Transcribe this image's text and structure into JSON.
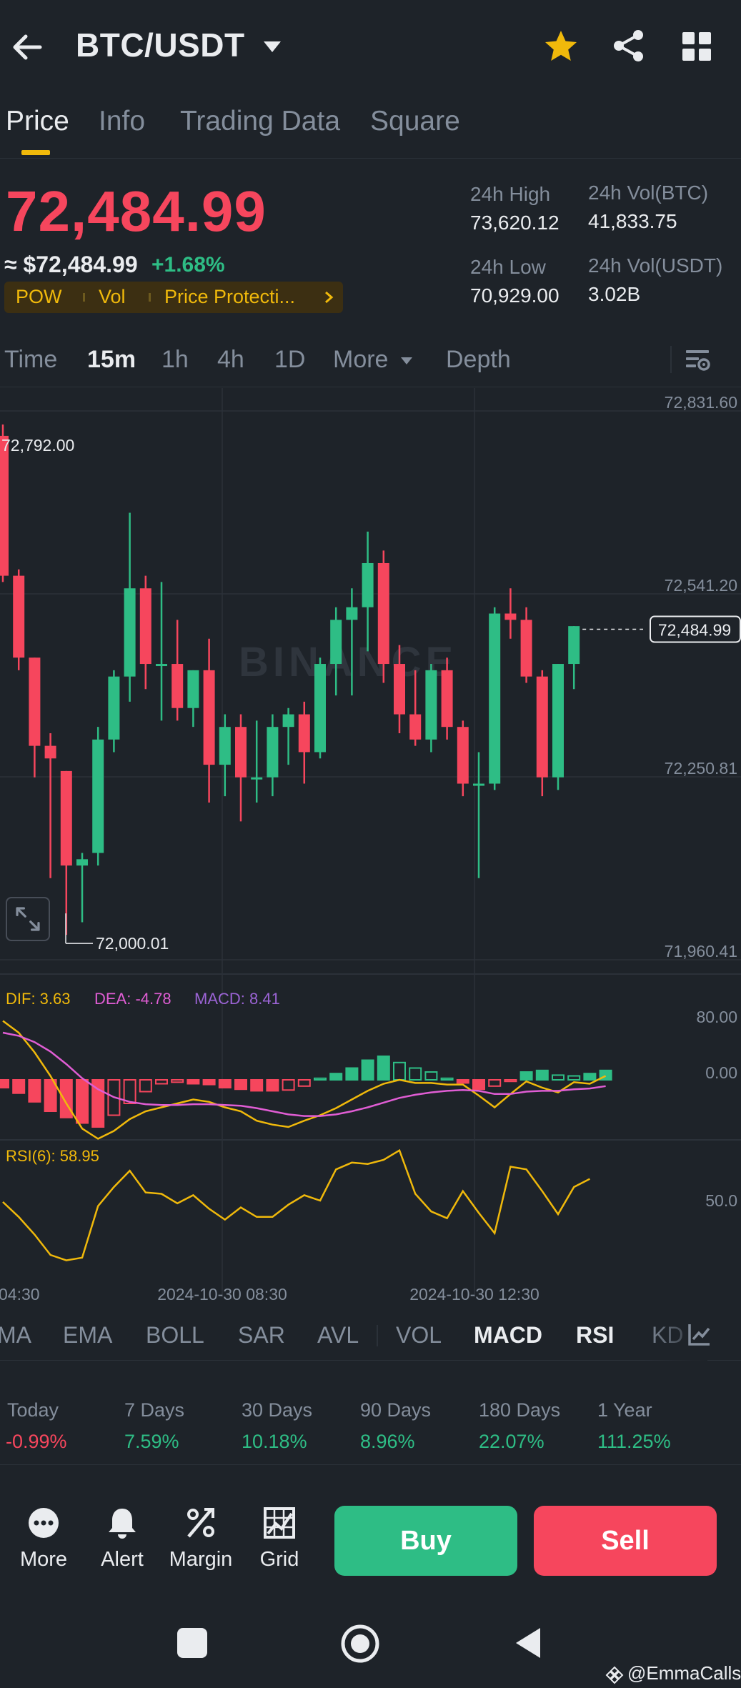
{
  "header": {
    "pair": "BTC/USDT",
    "icons": {
      "back": "back-arrow-icon",
      "caret": "caret-down-icon",
      "favorite": "star-icon",
      "share": "share-icon",
      "menu": "grid-icon"
    },
    "colors": {
      "favorite": "#f0b90b"
    }
  },
  "tabs": [
    {
      "label": "Price",
      "active": true
    },
    {
      "label": "Info",
      "active": false
    },
    {
      "label": "Trading Data",
      "active": false
    },
    {
      "label": "Square",
      "active": false
    }
  ],
  "price": {
    "last": "72,484.99",
    "approx": "≈ $72,484.99",
    "change": "+1.68%",
    "tags": [
      "POW",
      "Vol",
      "Price Protecti..."
    ],
    "stats": {
      "high_label": "24h High",
      "high": "73,620.12",
      "low_label": "24h Low",
      "low": "70,929.00",
      "vol_btc_label": "24h Vol(BTC)",
      "vol_btc": "41,833.75",
      "vol_usdt_label": "24h Vol(USDT)",
      "vol_usdt": "3.02B"
    },
    "colors": {
      "down": "#f6465d",
      "up": "#2ebd85",
      "accent": "#f0b90b"
    }
  },
  "intervals": {
    "items": [
      {
        "label": "Time",
        "active": false
      },
      {
        "label": "15m",
        "active": true
      },
      {
        "label": "1h",
        "active": false
      },
      {
        "label": "4h",
        "active": false
      },
      {
        "label": "1D",
        "active": false
      },
      {
        "label": "More",
        "active": false
      },
      {
        "label": "Depth",
        "active": false
      }
    ],
    "settings_icon": "chart-settings-icon"
  },
  "chart_data": [
    {
      "type": "candlestick",
      "watermark": "BINANCE",
      "y_ticks": [
        "72,831.60",
        "72,541.20",
        "72,250.81",
        "71,960.41"
      ],
      "ylim": [
        71960.41,
        72831.6
      ],
      "x_ticks": [
        "04:30",
        "2024-10-30 08:30",
        "2024-10-30 12:30"
      ],
      "max_label": "72,792.00",
      "min_label": "72,000.01",
      "last_price_label": "72,484.99",
      "candles": [
        {
          "o": 72792,
          "h": 72810,
          "l": 72560,
          "c": 72570
        },
        {
          "o": 72570,
          "h": 72580,
          "l": 72420,
          "c": 72440
        },
        {
          "o": 72440,
          "h": 72440,
          "l": 72250,
          "c": 72300
        },
        {
          "o": 72300,
          "h": 72320,
          "l": 72090,
          "c": 72280
        },
        {
          "o": 72260,
          "h": 72260,
          "l": 72000,
          "c": 72110
        },
        {
          "o": 72110,
          "h": 72130,
          "l": 72020,
          "c": 72120
        },
        {
          "o": 72130,
          "h": 72330,
          "l": 72110,
          "c": 72310
        },
        {
          "o": 72310,
          "h": 72420,
          "l": 72290,
          "c": 72410
        },
        {
          "o": 72410,
          "h": 72670,
          "l": 72370,
          "c": 72550
        },
        {
          "o": 72550,
          "h": 72570,
          "l": 72390,
          "c": 72430
        },
        {
          "o": 72430,
          "h": 72560,
          "l": 72340,
          "c": 72430
        },
        {
          "o": 72430,
          "h": 72500,
          "l": 72340,
          "c": 72360
        },
        {
          "o": 72360,
          "h": 72420,
          "l": 72330,
          "c": 72420
        },
        {
          "o": 72420,
          "h": 72470,
          "l": 72210,
          "c": 72270
        },
        {
          "o": 72270,
          "h": 72350,
          "l": 72220,
          "c": 72330
        },
        {
          "o": 72330,
          "h": 72350,
          "l": 72180,
          "c": 72250
        },
        {
          "o": 72250,
          "h": 72340,
          "l": 72210,
          "c": 72250
        },
        {
          "o": 72250,
          "h": 72350,
          "l": 72220,
          "c": 72330
        },
        {
          "o": 72330,
          "h": 72360,
          "l": 72270,
          "c": 72350
        },
        {
          "o": 72350,
          "h": 72370,
          "l": 72240,
          "c": 72290
        },
        {
          "o": 72290,
          "h": 72440,
          "l": 72280,
          "c": 72430
        },
        {
          "o": 72430,
          "h": 72520,
          "l": 72380,
          "c": 72500
        },
        {
          "o": 72500,
          "h": 72550,
          "l": 72380,
          "c": 72520
        },
        {
          "o": 72520,
          "h": 72640,
          "l": 72450,
          "c": 72590
        },
        {
          "o": 72590,
          "h": 72610,
          "l": 72400,
          "c": 72430
        },
        {
          "o": 72430,
          "h": 72460,
          "l": 72320,
          "c": 72350
        },
        {
          "o": 72350,
          "h": 72420,
          "l": 72300,
          "c": 72310
        },
        {
          "o": 72310,
          "h": 72430,
          "l": 72290,
          "c": 72420
        },
        {
          "o": 72420,
          "h": 72440,
          "l": 72310,
          "c": 72330
        },
        {
          "o": 72330,
          "h": 72340,
          "l": 72220,
          "c": 72240
        },
        {
          "o": 72240,
          "h": 72290,
          "l": 72090,
          "c": 72240
        },
        {
          "o": 72240,
          "h": 72520,
          "l": 72230,
          "c": 72510
        },
        {
          "o": 72510,
          "h": 72550,
          "l": 72470,
          "c": 72500
        },
        {
          "o": 72500,
          "h": 72520,
          "l": 72400,
          "c": 72410
        },
        {
          "o": 72410,
          "h": 72420,
          "l": 72220,
          "c": 72250
        },
        {
          "o": 72250,
          "h": 72430,
          "l": 72230,
          "c": 72430
        },
        {
          "o": 72430,
          "h": 72490,
          "l": 72390,
          "c": 72490
        }
      ],
      "colors": {
        "up": "#2ebd85",
        "down": "#f6465d",
        "grid": "#2b3139",
        "axis_text": "#848e9c"
      }
    },
    {
      "type": "line",
      "name": "MACD",
      "labels": {
        "dif": "DIF: 3.63",
        "dea": "DEA: -4.78",
        "macd": "MACD: 8.41"
      },
      "y_ticks": [
        "80.00",
        "0.00"
      ],
      "series": [
        {
          "name": "DIF",
          "color": "#f0b90b",
          "values": [
            75,
            60,
            35,
            5,
            -30,
            -62,
            -75,
            -65,
            -50,
            -40,
            -35,
            -30,
            -25,
            -28,
            -35,
            -40,
            -52,
            -57,
            -60,
            -52,
            -45,
            -36,
            -25,
            -14,
            -5,
            0,
            -4,
            -4,
            -6,
            -6,
            -20,
            -35,
            -18,
            -2,
            -10,
            -16,
            -3,
            -5,
            5
          ]
        },
        {
          "name": "DEA",
          "color": "#e05dd4",
          "values": [
            60,
            56,
            48,
            36,
            20,
            2,
            -12,
            -22,
            -28,
            -31,
            -32,
            -32,
            -31,
            -31,
            -32,
            -33,
            -36,
            -40,
            -44,
            -46,
            -46,
            -44,
            -40,
            -35,
            -29,
            -23,
            -19,
            -16,
            -14,
            -13,
            -14,
            -18,
            -18,
            -15,
            -14,
            -14,
            -12,
            -11,
            -8
          ]
        },
        {
          "name": "MACD",
          "color": "#9c64d6",
          "values": [
            -10,
            -17,
            -28,
            -40,
            -48,
            -55,
            -60,
            -45,
            -30,
            -15,
            -5,
            -3,
            -5,
            -6,
            -10,
            -12,
            -14,
            -14,
            -13,
            -8,
            2,
            8,
            15,
            25,
            30,
            22,
            15,
            10,
            2,
            -4,
            -12,
            -8,
            -2,
            10,
            12,
            6,
            5,
            8,
            12
          ]
        }
      ]
    },
    {
      "type": "line",
      "name": "RSI",
      "labels": {
        "rsi": "RSI(6): 58.95"
      },
      "y_ticks": [
        "50.0"
      ],
      "series": [
        {
          "name": "RSI(6)",
          "color": "#f0b90b",
          "values": [
            49,
            38,
            25,
            10,
            6,
            8,
            46,
            60,
            72,
            56,
            55,
            48,
            54,
            44,
            36,
            45,
            38,
            38,
            47,
            54,
            50,
            73,
            78,
            77,
            80,
            87,
            55,
            42,
            37,
            57,
            41,
            26,
            75,
            73,
            57,
            40,
            60,
            66
          ]
        }
      ]
    }
  ],
  "indicators": [
    {
      "label": "MA",
      "active": false
    },
    {
      "label": "EMA",
      "active": false
    },
    {
      "label": "BOLL",
      "active": false
    },
    {
      "label": "SAR",
      "active": false
    },
    {
      "label": "AVL",
      "active": false
    },
    {
      "label": "VOL",
      "active": false
    },
    {
      "label": "MACD",
      "active": true
    },
    {
      "label": "RSI",
      "active": true
    },
    {
      "label": "KD",
      "active": false
    }
  ],
  "performance": [
    {
      "label": "Today",
      "value": "-0.99%",
      "color": "#f6465d"
    },
    {
      "label": "7 Days",
      "value": "7.59%",
      "color": "#2ebd85"
    },
    {
      "label": "30 Days",
      "value": "10.18%",
      "color": "#2ebd85"
    },
    {
      "label": "90 Days",
      "value": "8.96%",
      "color": "#2ebd85"
    },
    {
      "label": "180 Days",
      "value": "22.07%",
      "color": "#2ebd85"
    },
    {
      "label": "1 Year",
      "value": "111.25%",
      "color": "#2ebd85"
    }
  ],
  "actions": {
    "more": "More",
    "alert": "Alert",
    "margin": "Margin",
    "grid": "Grid",
    "buy": "Buy",
    "sell": "Sell"
  },
  "footer": {
    "credit": "@EmmaCalls"
  }
}
